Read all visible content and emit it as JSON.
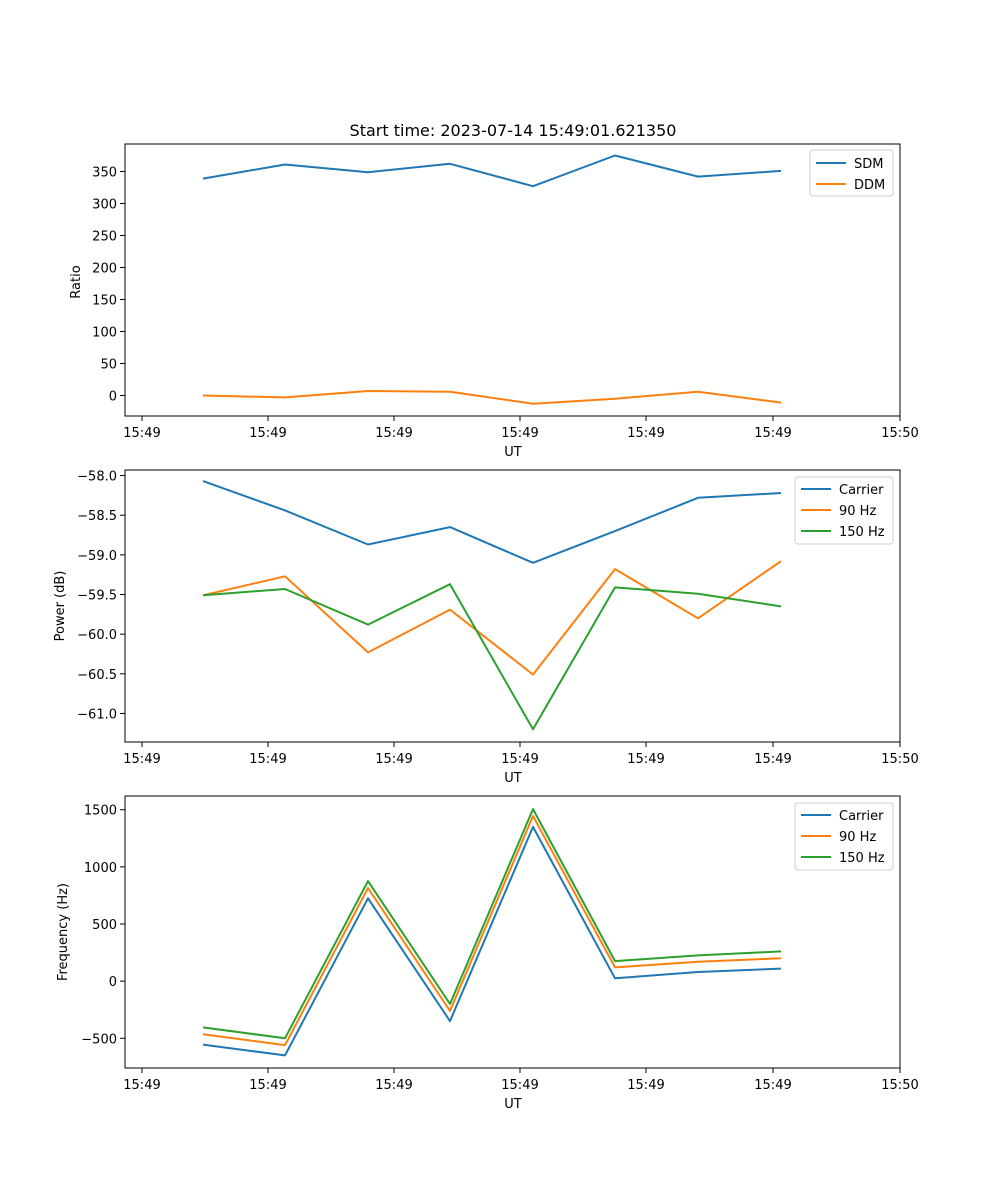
{
  "chart_data": [
    {
      "type": "line",
      "title": "Start time: 2023-07-14 15:49:01.621350",
      "xlabel": "UT",
      "ylabel": "Ratio",
      "x_tick_labels": [
        "15:49",
        "15:49",
        "15:49",
        "15:49",
        "15:49",
        "15:49",
        "15:50"
      ],
      "ylim": [
        -32,
        393
      ],
      "y_ticks": [
        0,
        50,
        100,
        150,
        200,
        250,
        300,
        350
      ],
      "y_tick_labels": [
        "0",
        "50",
        "100",
        "150",
        "200",
        "250",
        "300",
        "350"
      ],
      "legend": "top-right",
      "series": [
        {
          "name": "SDM",
          "color": "#1f77b4",
          "values": [
            339,
            361,
            349,
            362,
            327,
            375,
            342,
            351
          ]
        },
        {
          "name": "DDM",
          "color": "#ff7f0e",
          "values": [
            0,
            -3,
            7,
            6,
            -13,
            -5,
            6,
            -11
          ]
        }
      ]
    },
    {
      "type": "line",
      "title": "",
      "xlabel": "UT",
      "ylabel": "Power (dB)",
      "x_tick_labels": [
        "15:49",
        "15:49",
        "15:49",
        "15:49",
        "15:49",
        "15:49",
        "15:50"
      ],
      "ylim": [
        -61.36,
        -57.93
      ],
      "y_ticks": [
        -61.0,
        -60.5,
        -60.0,
        -59.5,
        -59.0,
        -58.5,
        -58.0
      ],
      "y_tick_labels": [
        "−61.0",
        "−60.5",
        "−60.0",
        "−59.5",
        "−59.0",
        "−58.5",
        "−58.0"
      ],
      "legend": "top-right",
      "series": [
        {
          "name": "Carrier",
          "color": "#1f77b4",
          "values": [
            -58.07,
            -58.44,
            -58.87,
            -58.65,
            -59.1,
            -58.7,
            -58.28,
            -58.22
          ]
        },
        {
          "name": "90 Hz",
          "color": "#ff7f0e",
          "values": [
            -59.51,
            -59.27,
            -60.23,
            -59.69,
            -60.51,
            -59.18,
            -59.8,
            -59.08
          ]
        },
        {
          "name": "150 Hz",
          "color": "#2ca02c",
          "values": [
            -59.51,
            -59.43,
            -59.88,
            -59.37,
            -61.2,
            -59.41,
            -59.49,
            -59.65
          ]
        }
      ]
    },
    {
      "type": "line",
      "title": "",
      "xlabel": "UT",
      "ylabel": "Frequency (Hz)",
      "x_tick_labels": [
        "15:49",
        "15:49",
        "15:49",
        "15:49",
        "15:49",
        "15:49",
        "15:50"
      ],
      "ylim": [
        -760,
        1620
      ],
      "y_ticks": [
        -500,
        0,
        500,
        1000,
        1500
      ],
      "y_tick_labels": [
        "−500",
        "0",
        "500",
        "1000",
        "1500"
      ],
      "legend": "top-right",
      "series": [
        {
          "name": "Carrier",
          "color": "#1f77b4",
          "values": [
            -555,
            -650,
            725,
            -350,
            1350,
            25,
            80,
            110
          ]
        },
        {
          "name": "90 Hz",
          "color": "#ff7f0e",
          "values": [
            -465,
            -560,
            815,
            -260,
            1445,
            120,
            170,
            200
          ]
        },
        {
          "name": "150 Hz",
          "color": "#2ca02c",
          "values": [
            -405,
            -500,
            875,
            -200,
            1505,
            175,
            225,
            260
          ]
        }
      ]
    }
  ]
}
